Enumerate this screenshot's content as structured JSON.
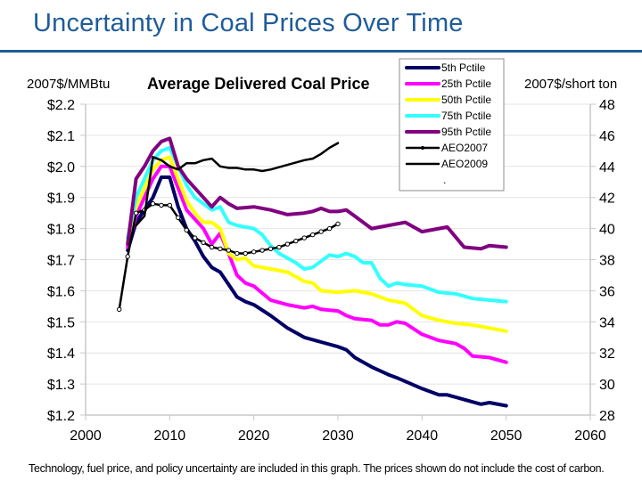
{
  "slide": {
    "title": "Uncertainty in Coal Prices Over Time",
    "footnote": "Technology, fuel price, and policy uncertainty are included in this graph. The prices shown do not include the cost of carbon."
  },
  "chart_data": {
    "type": "line",
    "title": "Average Delivered Coal Price",
    "ylabel": "2007$/MMBtu",
    "y2label": "2007$/short ton",
    "xlabel": "",
    "xlim": [
      2000,
      2060
    ],
    "ylim": [
      1.2,
      2.2
    ],
    "y2lim": [
      28,
      48
    ],
    "xticks": [
      "2000",
      "2010",
      "2020",
      "2030",
      "2040",
      "2050",
      "2060"
    ],
    "yticks": [
      "$1.2",
      "$1.3",
      "$1.4",
      "$1.5",
      "$1.6",
      "$1.7",
      "$1.8",
      "$1.9",
      "$2.0",
      "$2.1",
      "$2.2"
    ],
    "y2ticks": [
      "28",
      "30",
      "32",
      "34",
      "36",
      "38",
      "40",
      "42",
      "44",
      "46",
      "48"
    ],
    "grid": true,
    "legend": "top-right",
    "series": [
      {
        "name": "5th Pctile",
        "color": "#000066",
        "marker": false,
        "x": [
          2005,
          2006,
          2007,
          2008,
          2009,
          2010,
          2011,
          2012,
          2013,
          2014,
          2015,
          2016,
          2017,
          2018,
          2019,
          2020,
          2022,
          2024,
          2026,
          2028,
          2030,
          2031,
          2032,
          2034,
          2036,
          2037,
          2040,
          2042,
          2043,
          2045,
          2047,
          2048,
          2050
        ],
        "y": [
          1.73,
          1.82,
          1.86,
          1.9,
          1.965,
          1.965,
          1.87,
          1.8,
          1.76,
          1.71,
          1.675,
          1.66,
          1.62,
          1.58,
          1.565,
          1.555,
          1.52,
          1.48,
          1.45,
          1.435,
          1.42,
          1.41,
          1.385,
          1.355,
          1.33,
          1.32,
          1.285,
          1.265,
          1.265,
          1.25,
          1.235,
          1.24,
          1.23
        ]
      },
      {
        "name": "25th Pctile",
        "color": "#ff00ff",
        "marker": false,
        "x": [
          2005,
          2006,
          2007,
          2008,
          2009,
          2010,
          2011,
          2012,
          2013,
          2014,
          2015,
          2016,
          2017,
          2018,
          2019,
          2020,
          2022,
          2024,
          2026,
          2027,
          2028,
          2030,
          2031,
          2032,
          2034,
          2035,
          2036,
          2037,
          2038,
          2040,
          2042,
          2044,
          2045,
          2046,
          2048,
          2050
        ],
        "y": [
          1.74,
          1.84,
          1.9,
          1.96,
          2.0,
          2.0,
          1.93,
          1.86,
          1.83,
          1.8,
          1.75,
          1.785,
          1.72,
          1.65,
          1.625,
          1.615,
          1.57,
          1.555,
          1.545,
          1.55,
          1.54,
          1.535,
          1.52,
          1.51,
          1.505,
          1.49,
          1.49,
          1.5,
          1.495,
          1.46,
          1.44,
          1.43,
          1.415,
          1.39,
          1.385,
          1.37
        ]
      },
      {
        "name": "50th Pctile",
        "color": "#ffff00",
        "marker": false,
        "x": [
          2005,
          2006,
          2007,
          2008,
          2009,
          2010,
          2011,
          2012,
          2013,
          2014,
          2015,
          2016,
          2017,
          2018,
          2019,
          2020,
          2022,
          2024,
          2026,
          2027,
          2028,
          2030,
          2032,
          2034,
          2036,
          2037,
          2038,
          2040,
          2042,
          2044,
          2046,
          2048,
          2050
        ],
        "y": [
          1.76,
          1.87,
          1.93,
          1.99,
          2.02,
          2.03,
          1.96,
          1.89,
          1.85,
          1.82,
          1.82,
          1.8,
          1.72,
          1.7,
          1.705,
          1.68,
          1.67,
          1.66,
          1.63,
          1.625,
          1.6,
          1.595,
          1.6,
          1.59,
          1.57,
          1.565,
          1.56,
          1.52,
          1.505,
          1.495,
          1.49,
          1.48,
          1.47
        ]
      },
      {
        "name": "75th Pctile",
        "color": "#33ffff",
        "marker": false,
        "x": [
          2005,
          2006,
          2007,
          2008,
          2009,
          2010,
          2011,
          2012,
          2013,
          2014,
          2015,
          2016,
          2017,
          2018,
          2020,
          2021,
          2022,
          2023,
          2024,
          2025,
          2026,
          2027,
          2028,
          2029,
          2030,
          2031,
          2032,
          2033,
          2034,
          2035,
          2036,
          2037,
          2038,
          2040,
          2042,
          2044,
          2046,
          2048,
          2050
        ],
        "y": [
          1.77,
          1.9,
          1.96,
          2.02,
          2.05,
          2.06,
          2.0,
          1.94,
          1.9,
          1.88,
          1.86,
          1.87,
          1.82,
          1.81,
          1.8,
          1.78,
          1.745,
          1.72,
          1.705,
          1.69,
          1.67,
          1.675,
          1.695,
          1.715,
          1.71,
          1.72,
          1.71,
          1.69,
          1.69,
          1.64,
          1.615,
          1.625,
          1.62,
          1.615,
          1.595,
          1.59,
          1.575,
          1.57,
          1.565
        ]
      },
      {
        "name": "95th Pctile",
        "color": "#800080",
        "marker": false,
        "x": [
          2005,
          2006,
          2007,
          2008,
          2009,
          2010,
          2011,
          2012,
          2013,
          2014,
          2015,
          2016,
          2017,
          2018,
          2020,
          2022,
          2024,
          2026,
          2027,
          2028,
          2029,
          2030,
          2031,
          2032,
          2034,
          2036,
          2038,
          2040,
          2042,
          2043,
          2045,
          2047,
          2048,
          2050
        ],
        "y": [
          1.75,
          1.96,
          2.0,
          2.05,
          2.08,
          2.09,
          2.0,
          1.96,
          1.93,
          1.9,
          1.87,
          1.9,
          1.88,
          1.865,
          1.87,
          1.86,
          1.845,
          1.85,
          1.855,
          1.865,
          1.855,
          1.855,
          1.86,
          1.84,
          1.8,
          1.81,
          1.82,
          1.79,
          1.8,
          1.805,
          1.74,
          1.735,
          1.745,
          1.74
        ]
      },
      {
        "name": "AEO2007",
        "color": "#000000",
        "marker": true,
        "x": [
          2004,
          2005,
          2006,
          2007,
          2008,
          2009,
          2010,
          2011,
          2012,
          2013,
          2014,
          2015,
          2016,
          2017,
          2018,
          2019,
          2020,
          2021,
          2022,
          2023,
          2024,
          2025,
          2026,
          2027,
          2028,
          2029,
          2030
        ],
        "y": [
          1.54,
          1.71,
          1.85,
          1.86,
          1.88,
          1.875,
          1.875,
          1.835,
          1.795,
          1.77,
          1.755,
          1.74,
          1.735,
          1.73,
          1.72,
          1.72,
          1.725,
          1.73,
          1.735,
          1.74,
          1.75,
          1.76,
          1.77,
          1.78,
          1.79,
          1.8,
          1.815
        ]
      },
      {
        "name": "AEO2009",
        "color": "#000000",
        "marker": false,
        "x": [
          2006,
          2007,
          2008,
          2009,
          2010,
          2011,
          2012,
          2013,
          2014,
          2015,
          2016,
          2017,
          2018,
          2019,
          2020,
          2021,
          2022,
          2024,
          2026,
          2027,
          2028,
          2029,
          2030
        ],
        "y": [
          1.81,
          1.84,
          2.03,
          2.02,
          2.0,
          1.99,
          2.01,
          2.01,
          2.02,
          2.025,
          2.0,
          1.995,
          1.995,
          1.99,
          1.99,
          1.985,
          1.99,
          2.005,
          2.02,
          2.025,
          2.04,
          2.06,
          2.075
        ]
      }
    ],
    "legend_extra": "."
  }
}
